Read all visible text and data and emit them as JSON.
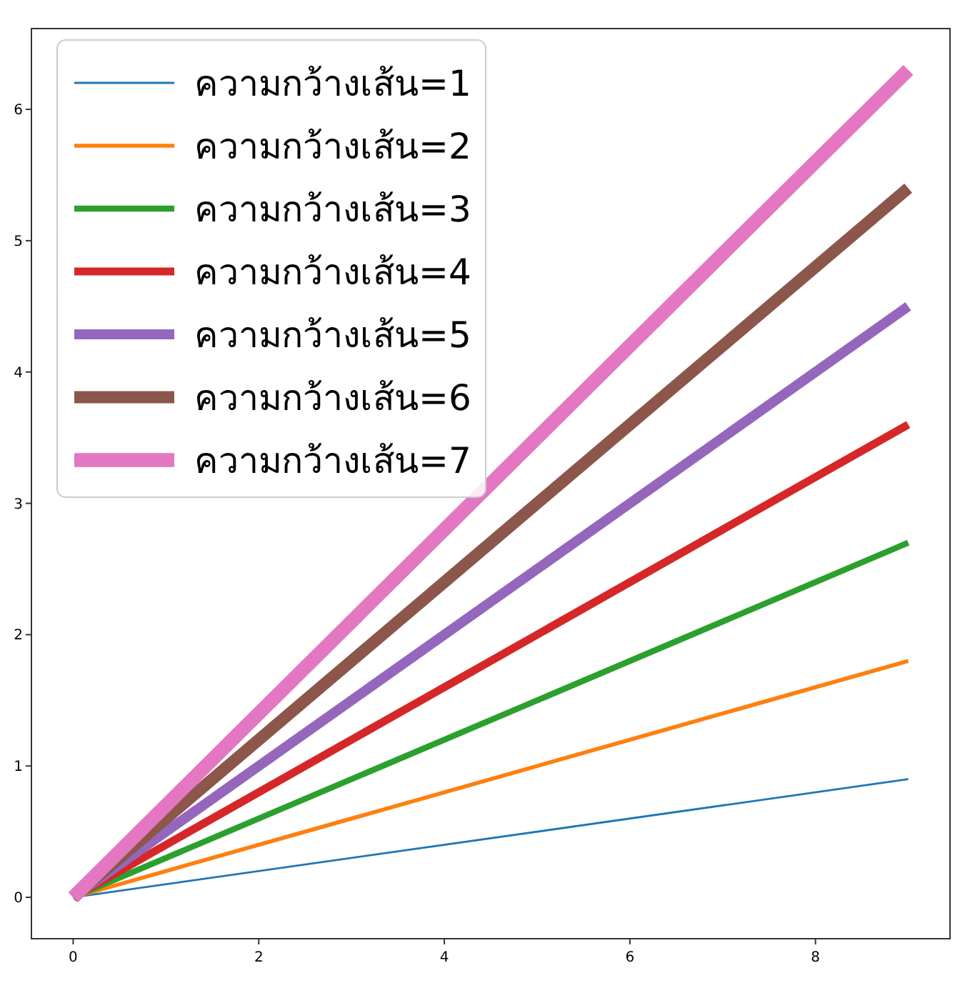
{
  "chart_data": {
    "type": "line",
    "xlim": [
      -0.45,
      9.45
    ],
    "ylim": [
      -0.315,
      6.615
    ],
    "xticks": [
      0,
      2,
      4,
      6,
      8
    ],
    "yticks": [
      0,
      1,
      2,
      3,
      4,
      5,
      6
    ],
    "grid": false,
    "legend": "top left",
    "line_style": "solid",
    "marker": "none",
    "x": [
      0,
      9
    ],
    "series": [
      {
        "name": "ความกว้างเส้น=1",
        "color": "#1f77b4",
        "values": [
          0,
          0.9
        ]
      },
      {
        "name": "ความกว้างเส้น=2",
        "color": "#ff7f0e",
        "values": [
          0,
          1.8
        ]
      },
      {
        "name": "ความกว้างเส้น=3",
        "color": "#2ca02c",
        "values": [
          0,
          2.7
        ]
      },
      {
        "name": "ความกว้างเส้น=4",
        "color": "#d62728",
        "values": [
          0,
          3.6
        ]
      },
      {
        "name": "ความกว้างเส้น=5",
        "color": "#9467bd",
        "values": [
          0,
          4.5
        ]
      },
      {
        "name": "ความกว้างเส้น=6",
        "color": "#8c564b",
        "values": [
          0,
          5.4
        ]
      },
      {
        "name": "ความกว้างเส้น=7",
        "color": "#e377c2",
        "values": [
          0,
          6.3
        ]
      }
    ]
  }
}
